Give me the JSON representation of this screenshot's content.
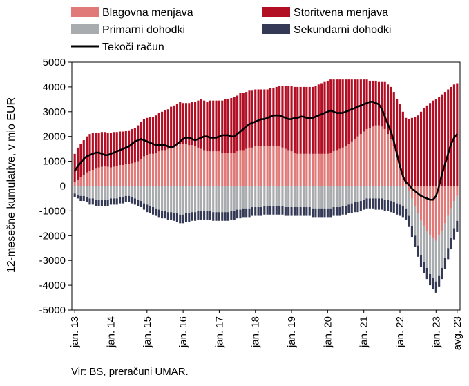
{
  "chart_data": {
    "type": "bar",
    "stacked": true,
    "ylabel": "12-mesečne kumulative, v mio EUR",
    "ylim": [
      -5000,
      5000
    ],
    "yticks": [
      5000,
      4000,
      3000,
      2000,
      1000,
      0,
      -1000,
      -2000,
      -3000,
      -4000,
      -5000
    ],
    "grid": false,
    "legend_position": "top",
    "x_tick_labels": [
      "jan. 13",
      "jan. 14",
      "jan. 15",
      "jan. 16",
      "jan. 17",
      "jan. 18",
      "jan. 19",
      "jan. 20",
      "jan. 21",
      "jan. 22",
      "jan. 23",
      "avg. 23"
    ],
    "x_tick_months": [
      0,
      12,
      24,
      36,
      48,
      60,
      72,
      84,
      96,
      108,
      120,
      127
    ],
    "x_start": "2013-01",
    "x_end": "2023-08",
    "series": [
      {
        "name": "Blagovna menjava",
        "kind": "bar",
        "color": "#e07a78",
        "values": [
          150,
          250,
          350,
          450,
          550,
          600,
          650,
          700,
          750,
          780,
          800,
          780,
          750,
          780,
          800,
          850,
          850,
          880,
          900,
          920,
          950,
          1000,
          1100,
          1200,
          1250,
          1300,
          1300,
          1350,
          1400,
          1450,
          1450,
          1500,
          1550,
          1600,
          1650,
          1700,
          1700,
          1700,
          1650,
          1650,
          1600,
          1550,
          1500,
          1450,
          1400,
          1400,
          1400,
          1400,
          1400,
          1350,
          1350,
          1350,
          1350,
          1350,
          1400,
          1450,
          1450,
          1500,
          1550,
          1550,
          1600,
          1600,
          1600,
          1600,
          1600,
          1600,
          1600,
          1600,
          1600,
          1550,
          1500,
          1450,
          1400,
          1350,
          1300,
          1300,
          1300,
          1300,
          1300,
          1300,
          1300,
          1300,
          1300,
          1300,
          1300,
          1350,
          1400,
          1450,
          1500,
          1550,
          1600,
          1700,
          1800,
          1900,
          2000,
          2100,
          2200,
          2300,
          2350,
          2400,
          2450,
          2450,
          2400,
          2300,
          2100,
          1900,
          1600,
          1200,
          800,
          400,
          100,
          -200,
          -500,
          -800,
          -1100,
          -1400,
          -1600,
          -1800,
          -2000,
          -2100,
          -2200,
          -2000,
          -1800,
          -1500,
          -1200,
          -900,
          -600,
          -400
        ]
      },
      {
        "name": "Storitvena menjava",
        "kind": "bar",
        "color": "#b20f24",
        "values": [
          1150,
          1300,
          1350,
          1400,
          1450,
          1500,
          1500,
          1450,
          1400,
          1400,
          1380,
          1350,
          1400,
          1400,
          1380,
          1350,
          1350,
          1350,
          1350,
          1380,
          1400,
          1450,
          1500,
          1500,
          1500,
          1480,
          1500,
          1500,
          1550,
          1550,
          1600,
          1600,
          1650,
          1650,
          1650,
          1700,
          1650,
          1650,
          1700,
          1750,
          1800,
          1900,
          2000,
          2000,
          2000,
          2050,
          2050,
          2050,
          2050,
          2100,
          2150,
          2150,
          2200,
          2250,
          2250,
          2300,
          2300,
          2300,
          2300,
          2300,
          2300,
          2300,
          2300,
          2300,
          2300,
          2350,
          2350,
          2400,
          2450,
          2500,
          2550,
          2600,
          2650,
          2650,
          2700,
          2700,
          2700,
          2700,
          2700,
          2700,
          2750,
          2800,
          2850,
          2900,
          2950,
          2950,
          2900,
          2850,
          2800,
          2750,
          2700,
          2600,
          2500,
          2400,
          2300,
          2200,
          2100,
          2000,
          1900,
          1850,
          1800,
          1750,
          1800,
          1900,
          2000,
          2100,
          2200,
          2300,
          2500,
          2600,
          2650,
          2700,
          2750,
          2800,
          2850,
          3000,
          3150,
          3250,
          3350,
          3450,
          3500,
          3600,
          3700,
          3800,
          3900,
          4000,
          4100,
          4150
        ]
      },
      {
        "name": "Primarni dohodki",
        "kind": "bar",
        "color": "#a9acaf",
        "values": [
          -300,
          -350,
          -400,
          -400,
          -450,
          -500,
          -500,
          -550,
          -550,
          -550,
          -550,
          -550,
          -500,
          -500,
          -500,
          -450,
          -450,
          -400,
          -400,
          -450,
          -500,
          -550,
          -600,
          -700,
          -750,
          -800,
          -850,
          -900,
          -950,
          -1000,
          -1000,
          -1050,
          -1050,
          -1100,
          -1100,
          -1150,
          -1150,
          -1100,
          -1100,
          -1050,
          -1050,
          -1000,
          -1000,
          -1000,
          -1000,
          -1000,
          -1050,
          -1050,
          -1050,
          -1050,
          -1050,
          -1050,
          -1000,
          -1000,
          -950,
          -950,
          -900,
          -900,
          -900,
          -850,
          -850,
          -850,
          -850,
          -800,
          -800,
          -800,
          -800,
          -800,
          -800,
          -800,
          -850,
          -850,
          -850,
          -850,
          -850,
          -850,
          -850,
          -850,
          -850,
          -900,
          -900,
          -900,
          -900,
          -900,
          -900,
          -900,
          -850,
          -850,
          -850,
          -800,
          -800,
          -750,
          -700,
          -650,
          -650,
          -600,
          -550,
          -500,
          -500,
          -500,
          -500,
          -500,
          -500,
          -550,
          -550,
          -600,
          -650,
          -700,
          -750,
          -800,
          -900,
          -1000,
          -1100,
          -1200,
          -1300,
          -1400,
          -1450,
          -1500,
          -1550,
          -1600,
          -1650,
          -1600,
          -1500,
          -1400,
          -1300,
          -1200,
          -1100,
          -1000
        ]
      },
      {
        "name": "Sekundarni dohodki",
        "kind": "bar",
        "color": "#343a56",
        "values": [
          -150,
          -150,
          -200,
          -200,
          -200,
          -250,
          -250,
          -250,
          -250,
          -250,
          -250,
          -250,
          -250,
          -250,
          -250,
          -250,
          -250,
          -250,
          -250,
          -250,
          -250,
          -250,
          -250,
          -250,
          -300,
          -300,
          -300,
          -300,
          -300,
          -300,
          -300,
          -300,
          -300,
          -300,
          -350,
          -350,
          -350,
          -350,
          -350,
          -350,
          -350,
          -350,
          -350,
          -350,
          -350,
          -350,
          -350,
          -350,
          -350,
          -350,
          -350,
          -350,
          -350,
          -350,
          -350,
          -350,
          -350,
          -350,
          -350,
          -350,
          -350,
          -350,
          -350,
          -350,
          -350,
          -350,
          -350,
          -350,
          -350,
          -350,
          -350,
          -350,
          -350,
          -350,
          -350,
          -350,
          -350,
          -350,
          -350,
          -350,
          -350,
          -350,
          -350,
          -350,
          -350,
          -350,
          -350,
          -350,
          -350,
          -350,
          -350,
          -350,
          -400,
          -400,
          -400,
          -400,
          -400,
          -400,
          -400,
          -400,
          -450,
          -450,
          -450,
          -450,
          -450,
          -450,
          -450,
          -450,
          -450,
          -450,
          -450,
          -450,
          -450,
          -450,
          -450,
          -450,
          -450,
          -450,
          -450,
          -450,
          -450,
          -450,
          -450,
          -450,
          -450,
          -450,
          -450,
          -450
        ]
      },
      {
        "name": "Tekoči račun",
        "kind": "line",
        "color": "#000000",
        "values": [
          600,
          800,
          950,
          1100,
          1200,
          1250,
          1300,
          1350,
          1350,
          1300,
          1250,
          1250,
          1300,
          1350,
          1400,
          1450,
          1500,
          1550,
          1600,
          1700,
          1800,
          1850,
          1900,
          1850,
          1800,
          1750,
          1700,
          1650,
          1650,
          1650,
          1650,
          1600,
          1550,
          1600,
          1700,
          1800,
          1900,
          1950,
          1950,
          1900,
          1850,
          1900,
          1950,
          2000,
          2000,
          1950,
          1950,
          1950,
          2000,
          2050,
          2050,
          2050,
          2000,
          2000,
          2100,
          2200,
          2300,
          2400,
          2500,
          2550,
          2600,
          2650,
          2700,
          2700,
          2750,
          2800,
          2850,
          2850,
          2850,
          2800,
          2750,
          2700,
          2700,
          2750,
          2750,
          2800,
          2800,
          2750,
          2750,
          2750,
          2800,
          2850,
          2900,
          2950,
          3000,
          3050,
          3000,
          2950,
          2950,
          2950,
          3000,
          3050,
          3100,
          3150,
          3200,
          3250,
          3300,
          3350,
          3400,
          3400,
          3350,
          3300,
          3100,
          2800,
          2500,
          2200,
          1800,
          1300,
          800,
          400,
          150,
          50,
          -100,
          -200,
          -300,
          -400,
          -450,
          -500,
          -550,
          -550,
          -400,
          0,
          500,
          900,
          1300,
          1700,
          1950,
          2100
        ]
      }
    ]
  },
  "source_text": "Vir: BS, preračuni UMAR."
}
